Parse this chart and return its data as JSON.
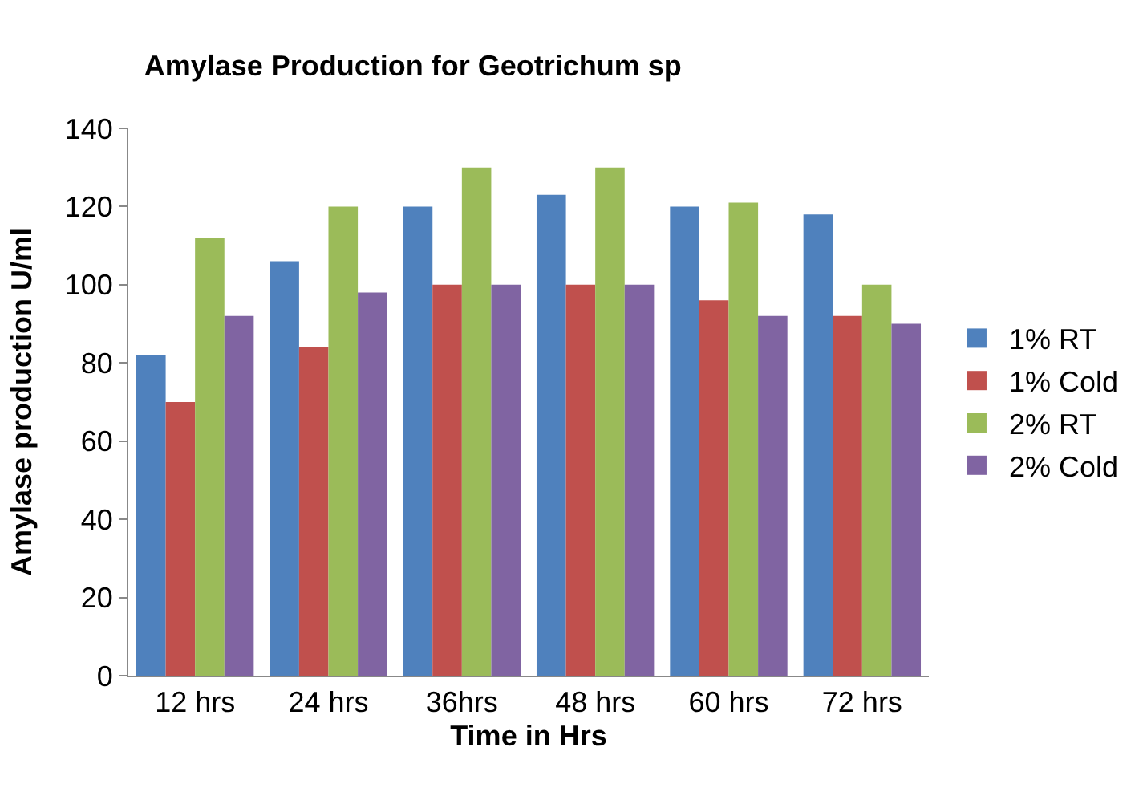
{
  "chart_data": {
    "type": "bar",
    "title": "Amylase Production for Geotrichum sp",
    "xlabel": "Time in Hrs",
    "ylabel": "Amylase production U/ml",
    "categories": [
      "12 hrs",
      "24 hrs",
      "36hrs",
      "48 hrs",
      "60 hrs",
      "72 hrs"
    ],
    "series": [
      {
        "name": "1% RT",
        "color": "#4f81bd",
        "values": [
          82,
          106,
          120,
          123,
          120,
          118
        ]
      },
      {
        "name": "1% Cold",
        "color": "#c0504d",
        "values": [
          70,
          84,
          100,
          100,
          96,
          92
        ]
      },
      {
        "name": "2% RT",
        "color": "#9bbb59",
        "values": [
          112,
          120,
          130,
          130,
          121,
          100
        ]
      },
      {
        "name": "2% Cold",
        "color": "#8064a2",
        "values": [
          92,
          98,
          100,
          100,
          92,
          90
        ]
      }
    ],
    "ylim": [
      0,
      140
    ],
    "yticks": [
      0,
      20,
      40,
      60,
      80,
      100,
      120,
      140
    ],
    "grid": false,
    "legend": "right"
  }
}
